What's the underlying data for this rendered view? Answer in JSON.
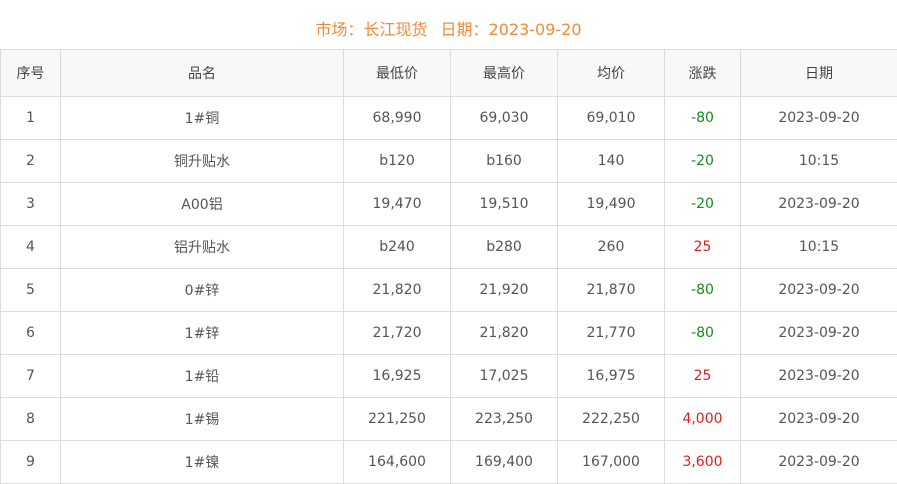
{
  "header": {
    "market_label": "市场：长江现货",
    "date_label": "日期：2023-09-20"
  },
  "colors": {
    "title": "#f08a3a",
    "down": "#1a8a1a",
    "up": "#e02020"
  },
  "columns": [
    "序号",
    "品名",
    "最低价",
    "最高价",
    "均价",
    "涨跌",
    "日期"
  ],
  "rows": [
    {
      "no": "1",
      "name": "1#铜",
      "low": "68,990",
      "high": "69,030",
      "avg": "69,010",
      "change": "-80",
      "date": "2023-09-20"
    },
    {
      "no": "2",
      "name": "铜升贴水",
      "low": "b120",
      "high": "b160",
      "avg": "140",
      "change": "-20",
      "date": "10:15"
    },
    {
      "no": "3",
      "name": "A00铝",
      "low": "19,470",
      "high": "19,510",
      "avg": "19,490",
      "change": "-20",
      "date": "2023-09-20"
    },
    {
      "no": "4",
      "name": "铝升贴水",
      "low": "b240",
      "high": "b280",
      "avg": "260",
      "change": "25",
      "date": "10:15"
    },
    {
      "no": "5",
      "name": "0#锌",
      "low": "21,820",
      "high": "21,920",
      "avg": "21,870",
      "change": "-80",
      "date": "2023-09-20"
    },
    {
      "no": "6",
      "name": "1#锌",
      "low": "21,720",
      "high": "21,820",
      "avg": "21,770",
      "change": "-80",
      "date": "2023-09-20"
    },
    {
      "no": "7",
      "name": "1#铅",
      "low": "16,925",
      "high": "17,025",
      "avg": "16,975",
      "change": "25",
      "date": "2023-09-20"
    },
    {
      "no": "8",
      "name": "1#锡",
      "low": "221,250",
      "high": "223,250",
      "avg": "222,250",
      "change": "4,000",
      "date": "2023-09-20"
    },
    {
      "no": "9",
      "name": "1#镍",
      "low": "164,600",
      "high": "169,400",
      "avg": "167,000",
      "change": "3,600",
      "date": "2023-09-20"
    }
  ]
}
